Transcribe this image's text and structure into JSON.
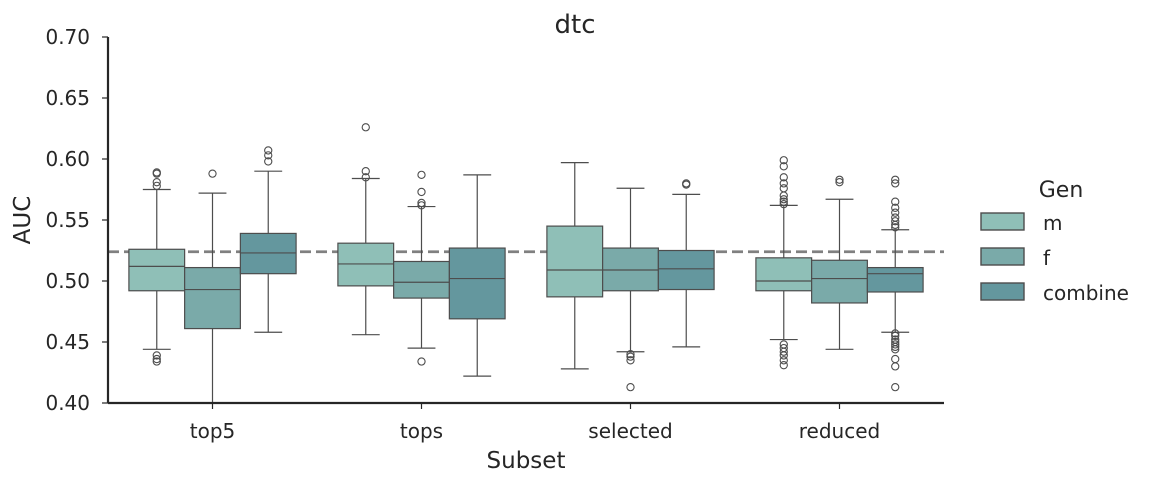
{
  "chart_data": {
    "type": "box",
    "title": "dtc",
    "xlabel": "Subset",
    "ylabel": "AUC",
    "ylim": [
      0.4,
      0.7
    ],
    "yticks": [
      "0.40",
      "0.45",
      "0.50",
      "0.55",
      "0.60",
      "0.65",
      "0.70"
    ],
    "categories": [
      "top5",
      "tops",
      "selected",
      "reduced"
    ],
    "reference_line": 0.524,
    "legend": {
      "title": "Gen",
      "placement": "right"
    },
    "series": [
      {
        "name": "m",
        "color": "#8fbfb7",
        "boxes": [
          {
            "q1": 0.492,
            "median": 0.512,
            "q3": 0.526,
            "whisker_low": 0.444,
            "whisker_high": 0.575,
            "outliers": [
              0.434,
              0.436,
              0.439,
              0.578,
              0.581,
              0.588,
              0.589
            ]
          },
          {
            "q1": 0.496,
            "median": 0.514,
            "q3": 0.531,
            "whisker_low": 0.456,
            "whisker_high": 0.584,
            "outliers": [
              0.585,
              0.59,
              0.626
            ]
          },
          {
            "q1": 0.487,
            "median": 0.509,
            "q3": 0.545,
            "whisker_low": 0.428,
            "whisker_high": 0.597,
            "outliers": []
          },
          {
            "q1": 0.492,
            "median": 0.5,
            "q3": 0.519,
            "whisker_low": 0.452,
            "whisker_high": 0.562,
            "outliers": [
              0.431,
              0.435,
              0.439,
              0.442,
              0.445,
              0.448,
              0.563,
              0.565,
              0.567,
              0.57,
              0.576,
              0.58,
              0.585,
              0.594,
              0.599
            ]
          }
        ]
      },
      {
        "name": "f",
        "color": "#7aaaa9",
        "boxes": [
          {
            "q1": 0.461,
            "median": 0.493,
            "q3": 0.511,
            "whisker_low": 0.4,
            "whisker_high": 0.572,
            "outliers": [
              0.588
            ]
          },
          {
            "q1": 0.486,
            "median": 0.499,
            "q3": 0.516,
            "whisker_low": 0.445,
            "whisker_high": 0.561,
            "outliers": [
              0.434,
              0.562,
              0.564,
              0.573,
              0.587
            ]
          },
          {
            "q1": 0.492,
            "median": 0.509,
            "q3": 0.527,
            "whisker_low": 0.442,
            "whisker_high": 0.576,
            "outliers": [
              0.413,
              0.435,
              0.438,
              0.44
            ]
          },
          {
            "q1": 0.482,
            "median": 0.502,
            "q3": 0.517,
            "whisker_low": 0.444,
            "whisker_high": 0.567,
            "outliers": [
              0.581,
              0.583
            ]
          }
        ]
      },
      {
        "name": "combine",
        "color": "#64979e",
        "boxes": [
          {
            "q1": 0.506,
            "median": 0.523,
            "q3": 0.539,
            "whisker_low": 0.458,
            "whisker_high": 0.59,
            "outliers": [
              0.598,
              0.603,
              0.607
            ]
          },
          {
            "q1": 0.469,
            "median": 0.502,
            "q3": 0.527,
            "whisker_low": 0.422,
            "whisker_high": 0.587,
            "outliers": []
          },
          {
            "q1": 0.493,
            "median": 0.51,
            "q3": 0.525,
            "whisker_low": 0.446,
            "whisker_high": 0.571,
            "outliers": [
              0.579,
              0.58
            ]
          },
          {
            "q1": 0.491,
            "median": 0.506,
            "q3": 0.511,
            "whisker_low": 0.458,
            "whisker_high": 0.542,
            "outliers": [
              0.413,
              0.43,
              0.436,
              0.444,
              0.446,
              0.448,
              0.45,
              0.452,
              0.455,
              0.457,
              0.544,
              0.546,
              0.549,
              0.552,
              0.556,
              0.56,
              0.565,
              0.58,
              0.583
            ]
          }
        ]
      }
    ]
  }
}
